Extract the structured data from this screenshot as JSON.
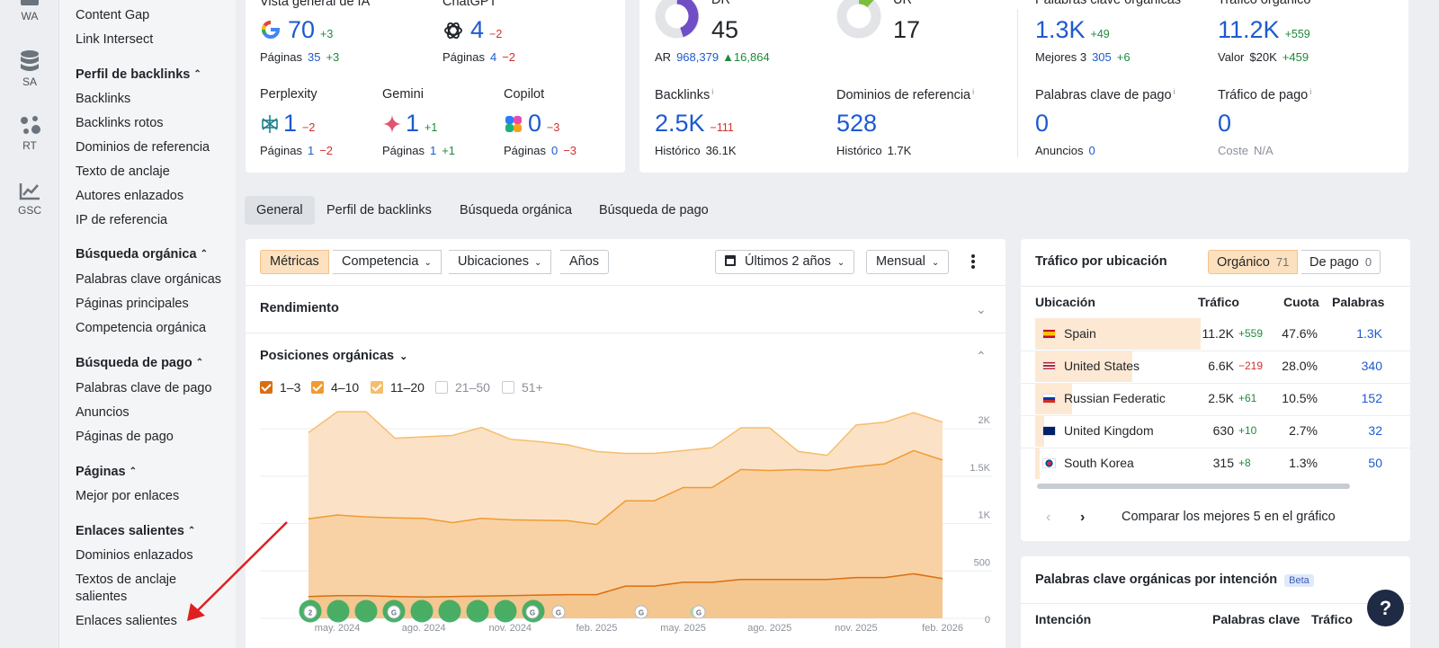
{
  "rail": [
    {
      "label": "WA",
      "icon": "wa-icon"
    },
    {
      "label": "SA",
      "icon": "database-icon"
    },
    {
      "label": "RT",
      "icon": "dots-icon"
    },
    {
      "label": "GSC",
      "icon": "chart-line-icon"
    }
  ],
  "sidenav": {
    "items_top": [
      "Content Gap",
      "Link Intersect"
    ],
    "sections": [
      {
        "title": "Perfil de backlinks",
        "items": [
          "Backlinks",
          "Backlinks rotos",
          "Dominios de referencia",
          "Texto de anclaje",
          "Autores enlazados",
          "IP de referencia"
        ]
      },
      {
        "title": "Búsqueda orgánica",
        "items": [
          "Palabras clave orgánicas",
          "Páginas principales",
          "Competencia orgánica"
        ]
      },
      {
        "title": "Búsqueda de pago",
        "items": [
          "Palabras clave de pago",
          "Anuncios",
          "Páginas de pago"
        ]
      },
      {
        "title": "Páginas",
        "items": [
          "Mejor por enlaces"
        ]
      },
      {
        "title": "Enlaces salientes",
        "items": [
          "Dominios enlazados",
          "Textos de anclaje salientes",
          "Enlaces salientes"
        ]
      }
    ]
  },
  "ai": {
    "overview": {
      "label": "Vista general de IA",
      "value": "70",
      "delta": "+3",
      "pages_label": "Páginas",
      "pages": "35",
      "pages_delta": "+3"
    },
    "chatgpt": {
      "label": "ChatGPT",
      "value": "4",
      "delta": "−2",
      "pages_label": "Páginas",
      "pages": "4",
      "pages_delta": "−2"
    },
    "perplexity": {
      "label": "Perplexity",
      "value": "1",
      "delta": "−2",
      "pages_label": "Páginas",
      "pages": "1",
      "pages_delta": "−2"
    },
    "gemini": {
      "label": "Gemini",
      "value": "1",
      "delta": "+1",
      "pages_label": "Páginas",
      "pages": "1",
      "pages_delta": "+1"
    },
    "copilot": {
      "label": "Copilot",
      "value": "0",
      "delta": "−3",
      "pages_label": "Páginas",
      "pages": "0",
      "pages_delta": "−3"
    }
  },
  "authority": {
    "dr": {
      "label": "DR",
      "value": "45",
      "ar_label": "AR",
      "ar": "968,379",
      "ar_delta": "▲16,864"
    },
    "ur": {
      "label": "UR",
      "value": "17"
    },
    "backlinks": {
      "label": "Backlinks",
      "value": "2.5K",
      "delta": "−111",
      "hist_label": "Histórico",
      "hist": "36.1K"
    },
    "refdomains": {
      "label": "Dominios de referencia",
      "value": "528",
      "hist_label": "Histórico",
      "hist": "1.7K"
    }
  },
  "organic": {
    "keywords": {
      "label": "Palabras clave orgánicas",
      "value": "1.3K",
      "delta": "+49",
      "sub_label": "Mejores 3",
      "sub": "305",
      "sub_delta": "+6"
    },
    "traffic": {
      "label": "Tráfico orgánico",
      "value": "11.2K",
      "delta": "+559",
      "sub_label": "Valor",
      "sub": "$20K",
      "sub_delta": "+459"
    },
    "paid_keywords": {
      "label": "Palabras clave de pago",
      "value": "0",
      "sub_label": "Anuncios",
      "sub": "0"
    },
    "paid_traffic": {
      "label": "Tráfico de pago",
      "value": "0",
      "sub_label": "Coste",
      "sub": "N/A"
    }
  },
  "tabs": [
    "General",
    "Perfil de backlinks",
    "Búsqueda orgánica",
    "Búsqueda de pago"
  ],
  "toolbar": {
    "segments": [
      "Métricas",
      "Competencia",
      "Ubicaciones",
      "Años"
    ],
    "range": "Últimos 2 años",
    "interval": "Mensual"
  },
  "sections": {
    "performance": "Rendimiento",
    "positions": "Posiciones orgánicas"
  },
  "legend": [
    {
      "label": "1–3",
      "checked": true,
      "color": "#d86f12"
    },
    {
      "label": "4–10",
      "checked": true,
      "color": "#f19a32"
    },
    {
      "label": "11–20",
      "checked": true,
      "color": "#f6bd6c"
    },
    {
      "label": "21–50",
      "checked": false,
      "color": "#c7ccd2"
    },
    {
      "label": "51+",
      "checked": false,
      "color": "#c7ccd2"
    }
  ],
  "chart_data": {
    "type": "area",
    "x": [
      "abr. 2024",
      "may. 2024",
      "jun. 2024",
      "jul. 2024",
      "ago. 2024",
      "sep. 2024",
      "oct. 2024",
      "nov. 2024",
      "dic. 2024",
      "ene. 2025",
      "feb. 2025",
      "mar. 2025",
      "abr. 2025",
      "may. 2025",
      "jun. 2025",
      "jul. 2025",
      "ago. 2025",
      "sep. 2025",
      "oct. 2025",
      "nov. 2025",
      "dic. 2025",
      "ene. 2026",
      "feb. 2026"
    ],
    "xticks": [
      "may. 2024",
      "ago. 2024",
      "nov. 2024",
      "feb. 2025",
      "may. 2025",
      "ago. 2025",
      "nov. 2025",
      "feb. 2026"
    ],
    "yticks": [
      "2K",
      "1.5K",
      "1K",
      "500",
      "0"
    ],
    "ylim": [
      0,
      2200
    ],
    "stacked": true,
    "series": [
      {
        "name": "1–3",
        "color": "#d86f12",
        "values": [
          230,
          240,
          240,
          230,
          225,
          230,
          235,
          240,
          245,
          250,
          250,
          340,
          340,
          380,
          380,
          410,
          410,
          410,
          410,
          430,
          430,
          470,
          420
        ]
      },
      {
        "name": "4–10",
        "color": "#f19a32",
        "values": [
          820,
          850,
          830,
          830,
          830,
          780,
          820,
          800,
          790,
          780,
          740,
          900,
          900,
          1000,
          1000,
          1160,
          1150,
          1160,
          1150,
          1170,
          1200,
          1300,
          1250
        ]
      },
      {
        "name": "11–20",
        "color": "#f6bd6c",
        "values": [
          910,
          1090,
          1110,
          840,
          860,
          920,
          960,
          850,
          830,
          800,
          770,
          500,
          500,
          390,
          420,
          440,
          450,
          190,
          160,
          440,
          440,
          400,
          400
        ]
      }
    ],
    "annotation_markers": [
      "G",
      "G",
      "G",
      "G",
      "G",
      "G",
      "G",
      "G",
      "2",
      "G",
      "G",
      "G",
      "G",
      "G"
    ]
  },
  "locations": {
    "title": "Tráfico por ubicación",
    "toggle": [
      {
        "label": "Orgánico",
        "count": "71"
      },
      {
        "label": "De pago",
        "count": "0"
      }
    ],
    "headers": [
      "Ubicación",
      "Tráfico",
      "Cuota",
      "Palabras"
    ],
    "rows": [
      {
        "country": "Spain",
        "traffic": "11.2K",
        "delta": "+559",
        "share": "47.6%",
        "keywords": "1.3K",
        "flag": "es"
      },
      {
        "country": "United States",
        "traffic": "6.6K",
        "delta": "−219",
        "share": "28.0%",
        "keywords": "340",
        "flag": "us"
      },
      {
        "country": "Russian Federatic",
        "traffic": "2.5K",
        "delta": "+61",
        "share": "10.5%",
        "keywords": "152",
        "flag": "ru"
      },
      {
        "country": "United Kingdom",
        "traffic": "630",
        "delta": "+10",
        "share": "2.7%",
        "keywords": "32",
        "flag": "gb"
      },
      {
        "country": "South Korea",
        "traffic": "315",
        "delta": "+8",
        "share": "1.3%",
        "keywords": "50",
        "flag": "kr"
      }
    ],
    "compare": "Comparar los mejores 5 en el gráfico"
  },
  "intent": {
    "title": "Palabras clave orgánicas por intención",
    "badge": "Beta",
    "headers": [
      "Intención",
      "Palabras clave",
      "Tráfico"
    ]
  },
  "help": "?"
}
